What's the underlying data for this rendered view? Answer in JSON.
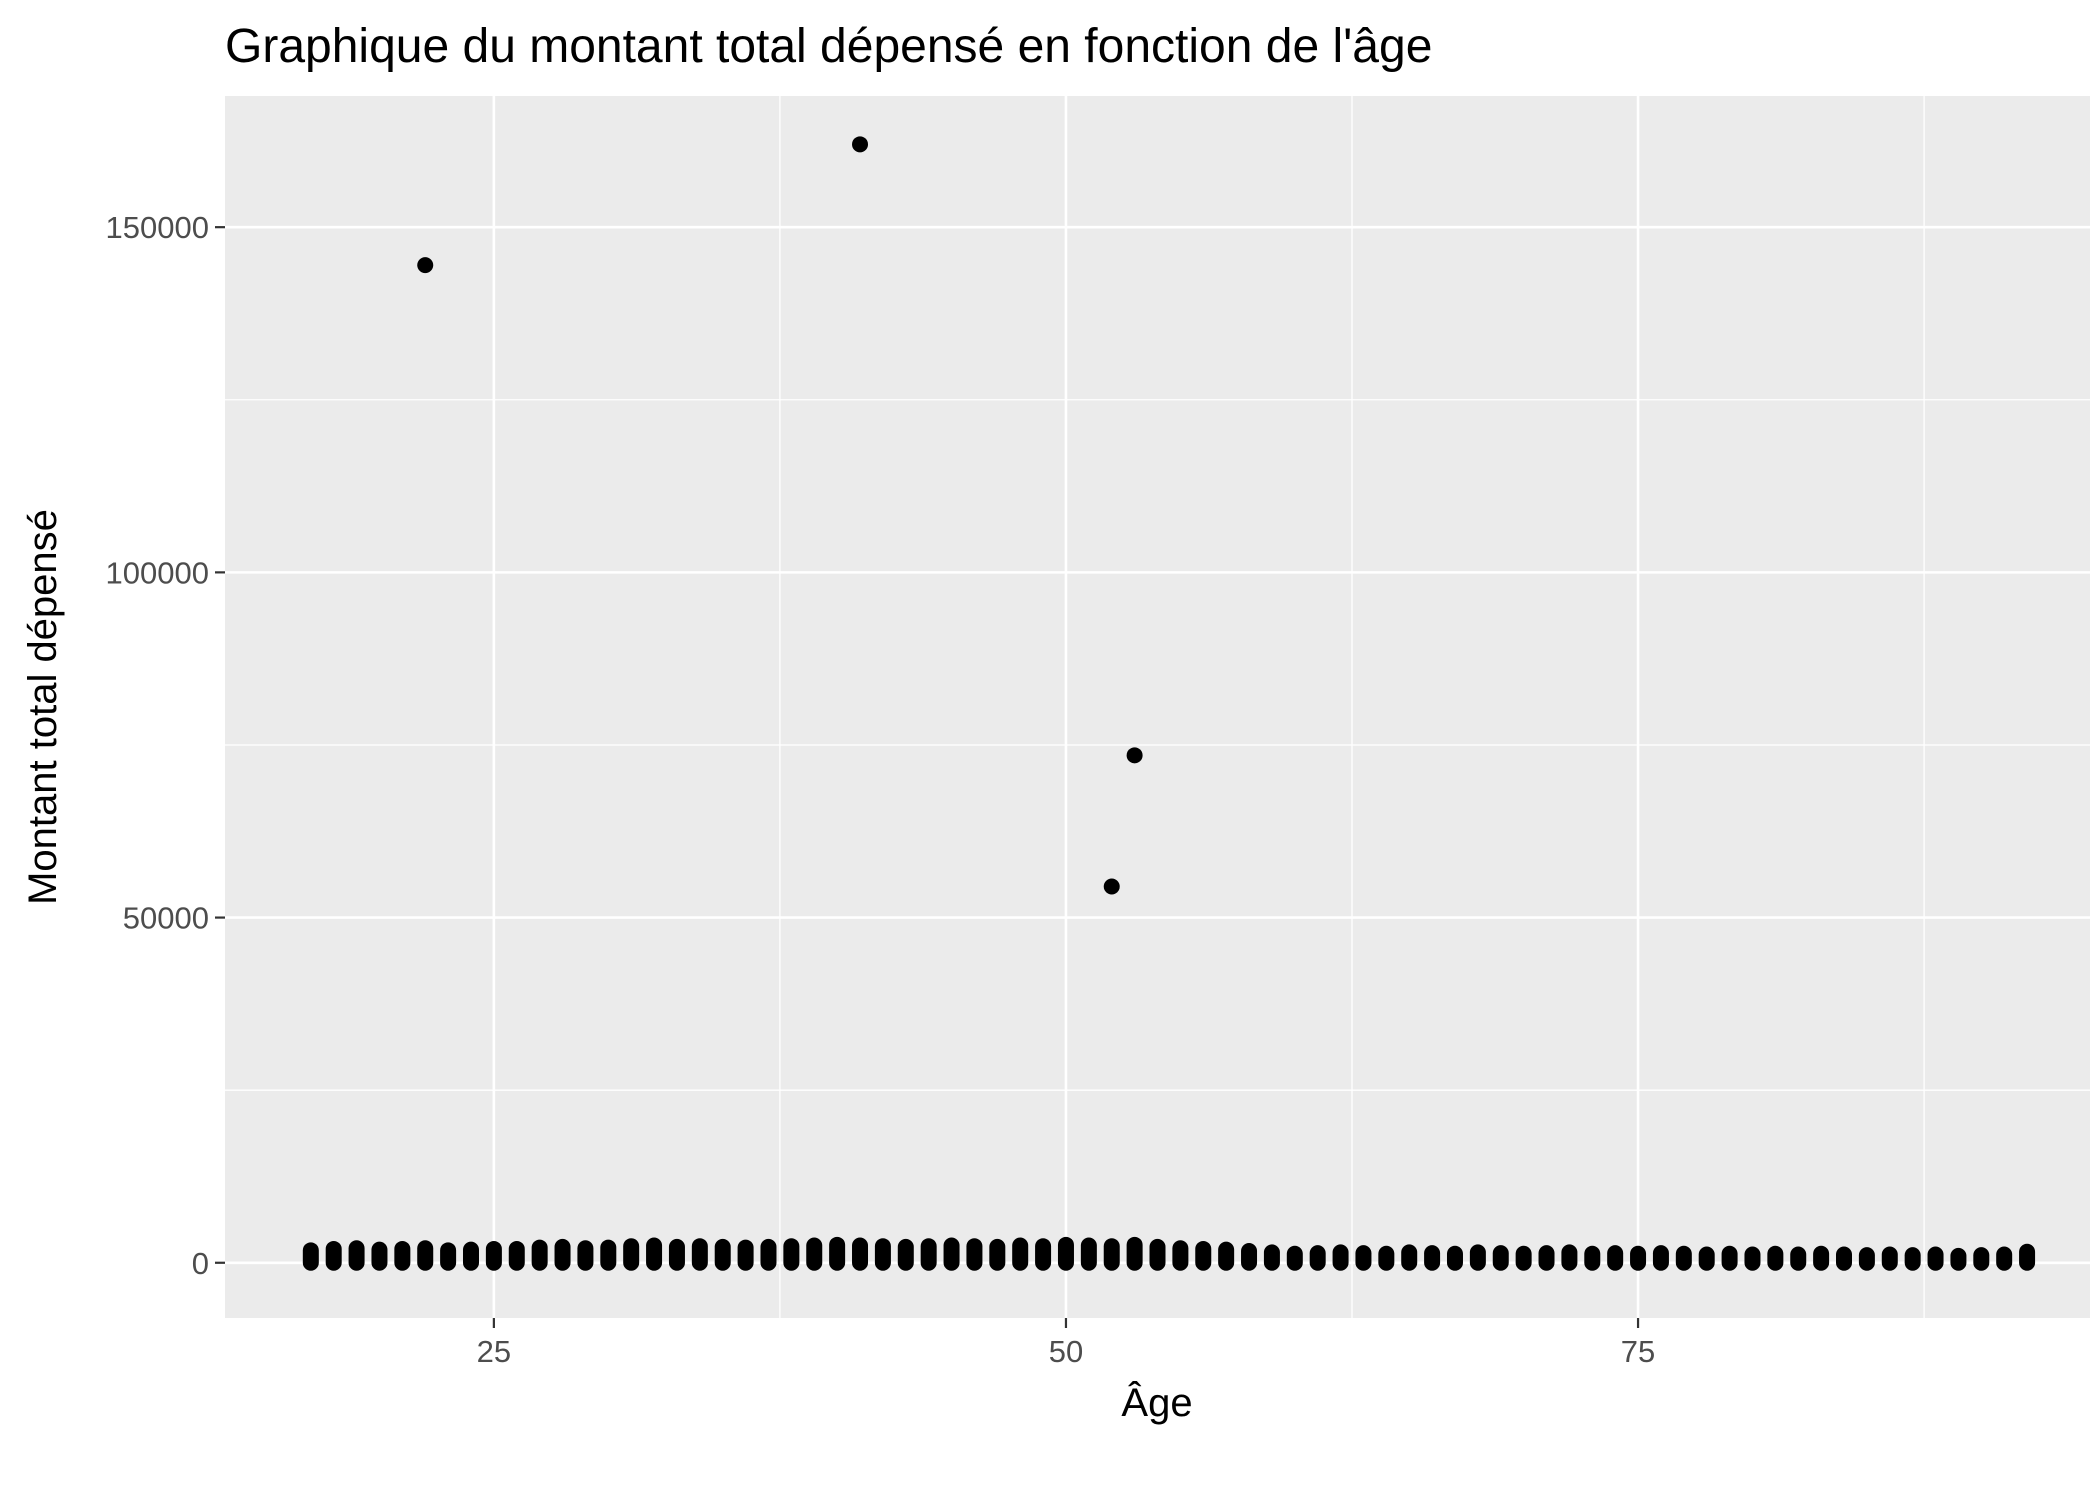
{
  "chart_data": {
    "type": "scatter",
    "title": "Graphique du montant total dépensé en fonction de l'âge",
    "xlabel": "Âge",
    "ylabel": "Montant total dépensé",
    "xlim": [
      13.25,
      94.75
    ],
    "ylim": [
      -8000,
      169000
    ],
    "xticks": [
      25,
      50,
      75
    ],
    "xtick_labels": [
      "25",
      "50",
      "75"
    ],
    "yticks": [
      0,
      50000,
      100000,
      150000
    ],
    "ytick_labels": [
      "0",
      "50000",
      "100000",
      "150000"
    ],
    "grid": true,
    "legend": "none",
    "colors": {
      "panel": "#ebebeb",
      "grid": "#ffffff",
      "point": "#000000",
      "tick": "#4d4d4d"
    },
    "outliers": [
      {
        "x": 22,
        "y": 144500
      },
      {
        "x": 41,
        "y": 162000
      },
      {
        "x": 52,
        "y": 54500
      },
      {
        "x": 53,
        "y": 73500
      }
    ],
    "cluster": {
      "x_start": 17,
      "x_end": 92,
      "max_values": [
        1800,
        2000,
        2100,
        1900,
        2000,
        2100,
        1800,
        1900,
        2000,
        2000,
        2200,
        2300,
        2100,
        2200,
        2400,
        2500,
        2300,
        2400,
        2300,
        2200,
        2300,
        2400,
        2500,
        2600,
        2500,
        2400,
        2300,
        2400,
        2500,
        2400,
        2300,
        2500,
        2400,
        2600,
        2500,
        2400,
        2600,
        2300,
        2100,
        2000,
        1900,
        1700,
        1500,
        1300,
        1400,
        1500,
        1400,
        1300,
        1500,
        1400,
        1300,
        1500,
        1400,
        1300,
        1400,
        1500,
        1300,
        1400,
        1300,
        1400,
        1300,
        1200,
        1300,
        1200,
        1300,
        1200,
        1300,
        1200,
        1100,
        1200,
        1100,
        1200,
        1000,
        1100,
        1200,
        1600
      ]
    }
  }
}
